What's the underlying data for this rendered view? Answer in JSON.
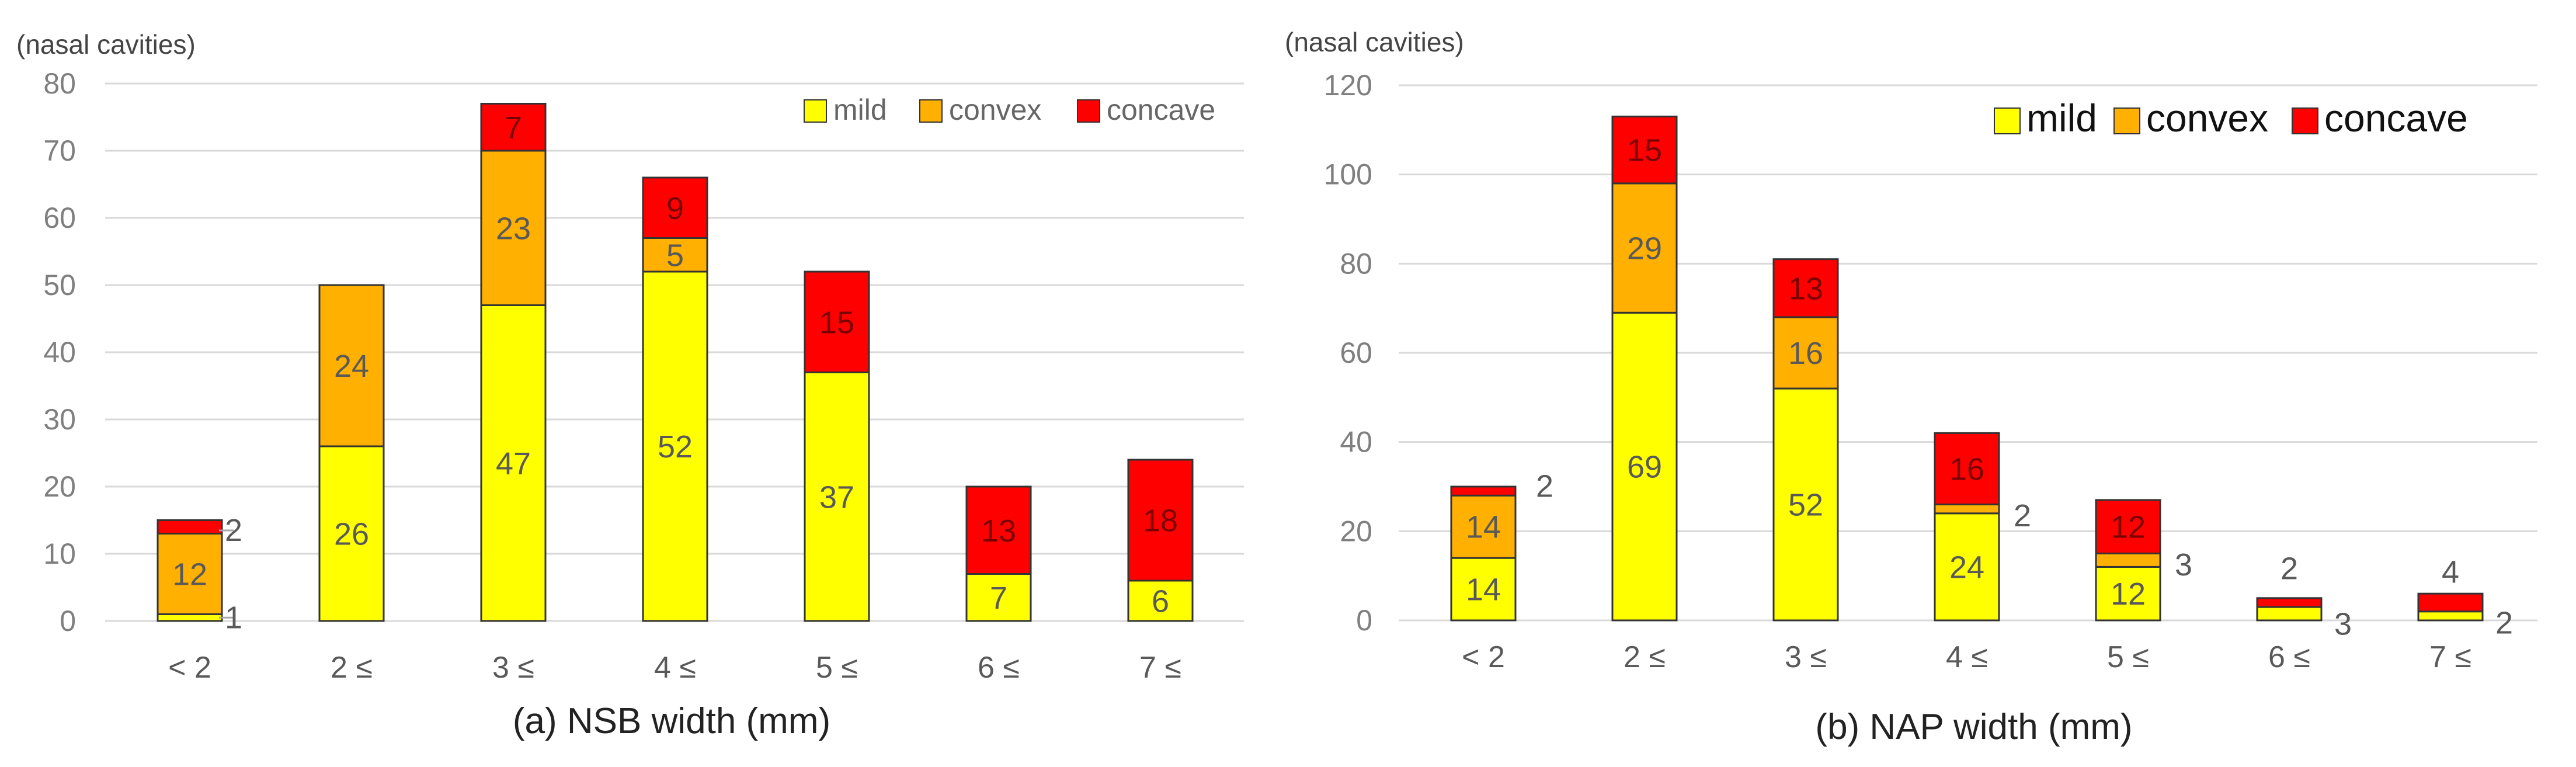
{
  "colors": {
    "mild": "#ffff00",
    "convex": "#ffb000",
    "concave": "#ff0000"
  },
  "chart_data": [
    {
      "type": "bar",
      "stacked": true,
      "title": "(a) NSB width (mm)",
      "xlabel": "(a) NSB width (mm)",
      "ylabel": "(nasal cavities)",
      "ylim": [
        0,
        80
      ],
      "yticks": [
        0,
        10,
        20,
        30,
        40,
        50,
        60,
        70,
        80
      ],
      "categories": [
        "< 2",
        "2 ≤",
        "3 ≤",
        "4 ≤",
        "5 ≤",
        "6 ≤",
        "7 ≤"
      ],
      "series": [
        {
          "name": "mild",
          "values": [
            1,
            26,
            47,
            52,
            37,
            7,
            6
          ]
        },
        {
          "name": "convex",
          "values": [
            12,
            24,
            23,
            5,
            0,
            0,
            0
          ]
        },
        {
          "name": "concave",
          "values": [
            2,
            0,
            7,
            9,
            15,
            13,
            18
          ]
        }
      ],
      "legend": {
        "entries": [
          "mild",
          "convex",
          "concave"
        ],
        "position": "top-right"
      }
    },
    {
      "type": "bar",
      "stacked": true,
      "title": "(b) NAP width (mm)",
      "xlabel": "(b) NAP width (mm)",
      "ylabel": "(nasal cavities)",
      "ylim": [
        0,
        120
      ],
      "yticks": [
        0,
        20,
        40,
        60,
        80,
        100,
        120
      ],
      "categories": [
        "< 2",
        "2 ≤",
        "3 ≤",
        "4 ≤",
        "5 ≤",
        "6 ≤",
        "7 ≤"
      ],
      "series": [
        {
          "name": "mild",
          "values": [
            14,
            69,
            52,
            24,
            12,
            3,
            2
          ]
        },
        {
          "name": "convex",
          "values": [
            14,
            29,
            16,
            2,
            3,
            0,
            0
          ]
        },
        {
          "name": "concave",
          "values": [
            2,
            15,
            13,
            16,
            12,
            2,
            4
          ]
        }
      ],
      "legend": {
        "entries": [
          "mild",
          "convex",
          "concave"
        ],
        "position": "top-right"
      }
    }
  ]
}
